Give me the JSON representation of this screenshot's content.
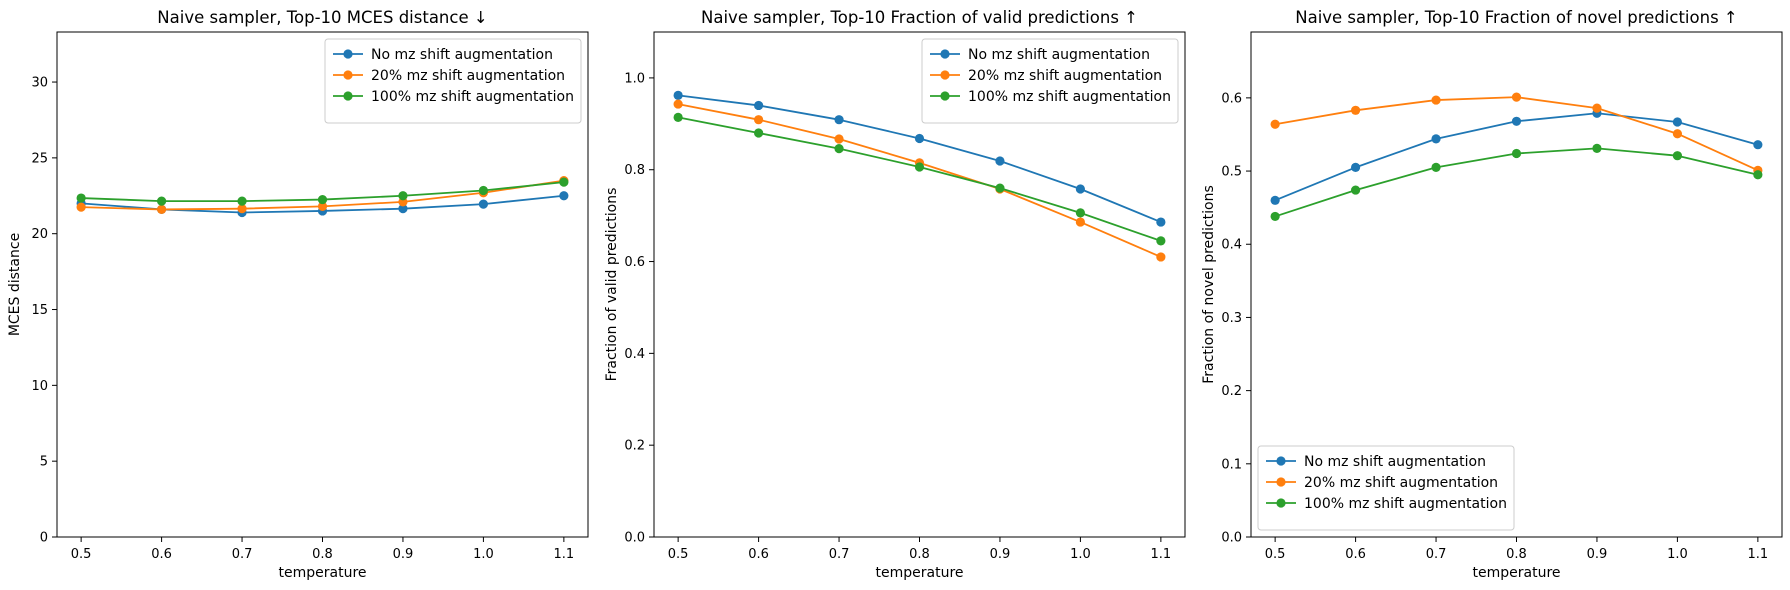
{
  "chart_data": [
    {
      "type": "line",
      "title": "Naive sampler, Top-10 MCES distance ↓",
      "xlabel": "temperature",
      "ylabel": "MCES distance",
      "x": [
        0.5,
        0.6,
        0.7,
        0.8,
        0.9,
        1.0,
        1.1
      ],
      "xticks": [
        "0.5",
        "0.6",
        "0.7",
        "0.8",
        "0.9",
        "1.0",
        "1.1"
      ],
      "xlim": [
        0.47,
        1.13
      ],
      "ylim": [
        0,
        33.3
      ],
      "yticks": [
        "0",
        "5",
        "10",
        "15",
        "20",
        "25",
        "30"
      ],
      "legend_position": "upper right",
      "series": [
        {
          "name": "No mz shift augmentation",
          "color": "#1f77b4",
          "values": [
            22.0,
            21.6,
            21.4,
            21.5,
            21.65,
            21.95,
            22.5
          ]
        },
        {
          "name": "20% mz shift augmentation",
          "color": "#ff7f0e",
          "values": [
            21.75,
            21.6,
            21.65,
            21.8,
            22.1,
            22.7,
            23.5
          ]
        },
        {
          "name": "100% mz shift augmentation",
          "color": "#2ca02c",
          "values": [
            22.35,
            22.15,
            22.15,
            22.25,
            22.5,
            22.85,
            23.4
          ]
        }
      ]
    },
    {
      "type": "line",
      "title": "Naive sampler, Top-10 Fraction of valid predictions ↑",
      "xlabel": "temperature",
      "ylabel": "Fraction of valid predictions",
      "x": [
        0.5,
        0.6,
        0.7,
        0.8,
        0.9,
        1.0,
        1.1
      ],
      "xticks": [
        "0.5",
        "0.6",
        "0.7",
        "0.8",
        "0.9",
        "1.0",
        "1.1"
      ],
      "xlim": [
        0.47,
        1.13
      ],
      "ylim": [
        0,
        1.1
      ],
      "yticks": [
        "0.0",
        "0.2",
        "0.4",
        "0.6",
        "0.8",
        "1.0"
      ],
      "legend_position": "upper right",
      "series": [
        {
          "name": "No mz shift augmentation",
          "color": "#1f77b4",
          "values": [
            0.962,
            0.94,
            0.909,
            0.868,
            0.819,
            0.758,
            0.686
          ]
        },
        {
          "name": "20% mz shift augmentation",
          "color": "#ff7f0e",
          "values": [
            0.943,
            0.909,
            0.867,
            0.815,
            0.758,
            0.686,
            0.61
          ]
        },
        {
          "name": "100% mz shift augmentation",
          "color": "#2ca02c",
          "values": [
            0.914,
            0.88,
            0.846,
            0.806,
            0.76,
            0.706,
            0.645
          ]
        }
      ]
    },
    {
      "type": "line",
      "title": "Naive sampler, Top-10 Fraction of novel predictions ↑",
      "xlabel": "temperature",
      "ylabel": "Fraction of novel predictions",
      "x": [
        0.5,
        0.6,
        0.7,
        0.8,
        0.9,
        1.0,
        1.1
      ],
      "xticks": [
        "0.5",
        "0.6",
        "0.7",
        "0.8",
        "0.9",
        "1.0",
        "1.1"
      ],
      "xlim": [
        0.47,
        1.13
      ],
      "ylim": [
        0,
        0.69
      ],
      "yticks": [
        "0.0",
        "0.1",
        "0.2",
        "0.3",
        "0.4",
        "0.5",
        "0.6"
      ],
      "legend_position": "lower left",
      "series": [
        {
          "name": "No mz shift augmentation",
          "color": "#1f77b4",
          "values": [
            0.46,
            0.505,
            0.544,
            0.568,
            0.579,
            0.567,
            0.536
          ]
        },
        {
          "name": "20% mz shift augmentation",
          "color": "#ff7f0e",
          "values": [
            0.564,
            0.583,
            0.597,
            0.601,
            0.586,
            0.551,
            0.501
          ]
        },
        {
          "name": "100% mz shift augmentation",
          "color": "#2ca02c",
          "values": [
            0.438,
            0.474,
            0.505,
            0.524,
            0.531,
            0.521,
            0.495
          ]
        }
      ]
    }
  ]
}
